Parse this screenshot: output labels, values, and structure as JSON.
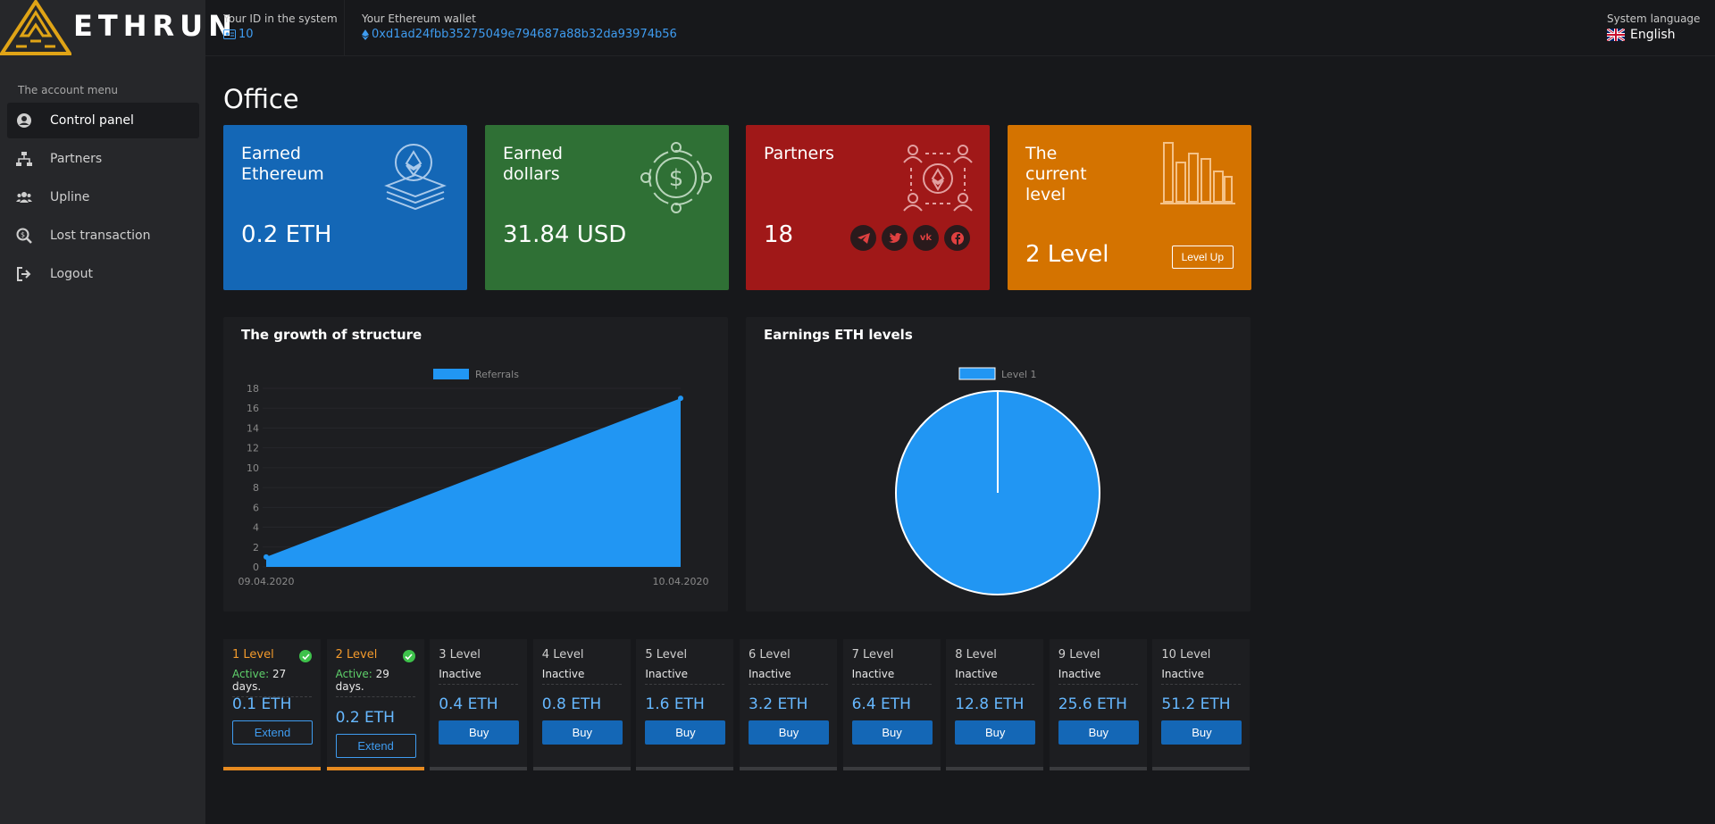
{
  "brand": {
    "name": "ETHRUN"
  },
  "header": {
    "id_label": "Your ID in the system",
    "id_value": "10",
    "wallet_label": "Your Ethereum wallet",
    "wallet_value": "0xd1ad24fbb35275049e794687a88b32da93974b56",
    "lang_label": "System language",
    "lang_value": "English"
  },
  "sidebar": {
    "title": "The account menu",
    "items": [
      {
        "label": "Control panel",
        "icon": "user-circle-icon",
        "active": true
      },
      {
        "label": "Partners",
        "icon": "sitemap-icon"
      },
      {
        "label": "Upline",
        "icon": "users-icon"
      },
      {
        "label": "Lost transaction",
        "icon": "search-dollar-icon"
      },
      {
        "label": "Logout",
        "icon": "logout-icon"
      }
    ]
  },
  "page": {
    "title": "Office"
  },
  "cards": {
    "eth": {
      "title_l1": "Earned",
      "title_l2": "Ethereum",
      "value": "0.2 ETH",
      "color": "#1467b6"
    },
    "usd": {
      "title_l1": "Earned",
      "title_l2": "dollars",
      "value": "31.84 USD",
      "color": "#2f7035"
    },
    "partners": {
      "title": "Partners",
      "value": "18",
      "color": "#a01818",
      "socials": [
        "telegram-icon",
        "twitter-icon",
        "vk-icon",
        "facebook-icon"
      ]
    },
    "level": {
      "title_l1": "The",
      "title_l2": "current",
      "title_l3": "level",
      "value": "2 Level",
      "button": "Level Up",
      "color": "#d47300"
    }
  },
  "growth_panel": {
    "title": "The growth of structure"
  },
  "earnings_panel": {
    "title": "Earnings ETH levels"
  },
  "chart_data": [
    {
      "type": "area",
      "title": "The growth of structure",
      "series": [
        {
          "name": "Referrals",
          "values": [
            1,
            17
          ],
          "color": "#2196f3"
        }
      ],
      "x": [
        "09.04.2020",
        "10.04.2020"
      ],
      "ylim": [
        0,
        18
      ],
      "yticks": [
        0,
        2,
        4,
        6,
        8,
        10,
        12,
        14,
        16,
        18
      ],
      "legend": "top-center",
      "grid": true
    },
    {
      "type": "pie",
      "title": "Earnings ETH levels",
      "categories": [
        "Level 1"
      ],
      "values": [
        100
      ],
      "colors": [
        "#2196f3"
      ],
      "legend": "top-center"
    }
  ],
  "levels": [
    {
      "name": "1 Level",
      "active": true,
      "status_label": "Active:",
      "status_value": "27 days.",
      "price": "0.1 ETH",
      "button": "Extend"
    },
    {
      "name": "2 Level",
      "active": true,
      "status_label": "Active:",
      "status_value": "29 days.",
      "price": "0.2 ETH",
      "button": "Extend"
    },
    {
      "name": "3 Level",
      "active": false,
      "status_value": "Inactive",
      "price": "0.4 ETH",
      "button": "Buy"
    },
    {
      "name": "4 Level",
      "active": false,
      "status_value": "Inactive",
      "price": "0.8 ETH",
      "button": "Buy"
    },
    {
      "name": "5 Level",
      "active": false,
      "status_value": "Inactive",
      "price": "1.6 ETH",
      "button": "Buy"
    },
    {
      "name": "6 Level",
      "active": false,
      "status_value": "Inactive",
      "price": "3.2 ETH",
      "button": "Buy"
    },
    {
      "name": "7 Level",
      "active": false,
      "status_value": "Inactive",
      "price": "6.4 ETH",
      "button": "Buy"
    },
    {
      "name": "8 Level",
      "active": false,
      "status_value": "Inactive",
      "price": "12.8 ETH",
      "button": "Buy"
    },
    {
      "name": "9 Level",
      "active": false,
      "status_value": "Inactive",
      "price": "25.6 ETH",
      "button": "Buy"
    },
    {
      "name": "10 Level",
      "active": false,
      "status_value": "Inactive",
      "price": "51.2 ETH",
      "button": "Buy"
    }
  ]
}
